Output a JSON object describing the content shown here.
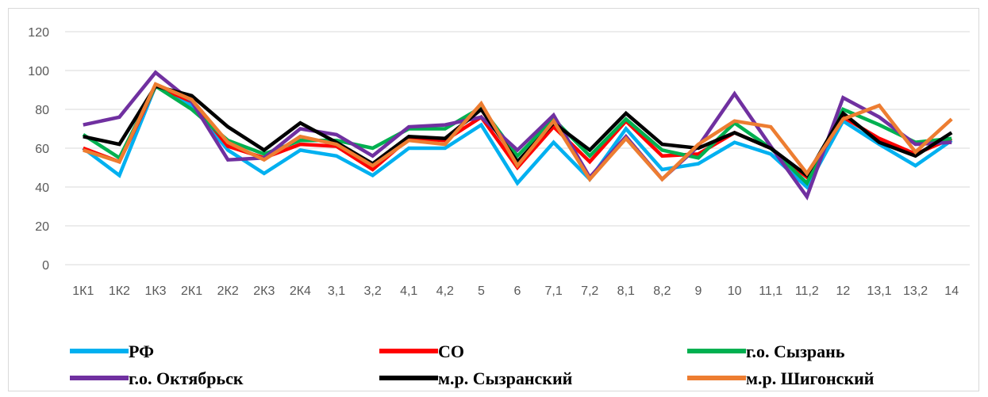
{
  "chart_data": {
    "type": "line",
    "title": "",
    "xlabel": "",
    "ylabel": "",
    "ylim": [
      0,
      120
    ],
    "yticks": [
      0,
      20,
      40,
      60,
      80,
      100,
      120
    ],
    "grid": "horizontal",
    "legend_position": "bottom",
    "categories": [
      "1К1",
      "1К2",
      "1К3",
      "2К1",
      "2К2",
      "2К3",
      "2К4",
      "3,1",
      "3,2",
      "4,1",
      "4,2",
      "5",
      "6",
      "7,1",
      "7,2",
      "8,1",
      "8,2",
      "9",
      "10",
      "11,1",
      "11,2",
      "12",
      "13,1",
      "13,2",
      "14"
    ],
    "series": [
      {
        "name": "РФ",
        "color": "#00b0f0",
        "values": [
          60,
          46,
          92,
          82,
          59,
          47,
          59,
          56,
          46,
          60,
          60,
          72,
          42,
          63,
          44,
          70,
          49,
          52,
          63,
          57,
          40,
          74,
          62,
          51,
          64
        ]
      },
      {
        "name": "СО",
        "color": "#ff0000",
        "values": [
          60,
          53,
          92,
          84,
          61,
          55,
          62,
          61,
          49,
          65,
          64,
          76,
          50,
          71,
          53,
          74,
          56,
          57,
          68,
          60,
          45,
          76,
          65,
          57,
          65
        ]
      },
      {
        "name": "г.о. Сызрань",
        "color": "#00b050",
        "values": [
          67,
          55,
          92,
          80,
          64,
          57,
          64,
          64,
          60,
          70,
          70,
          81,
          56,
          75,
          56,
          75,
          59,
          55,
          73,
          60,
          42,
          80,
          72,
          63,
          65
        ]
      },
      {
        "name": "г.о. Октябрьск",
        "color": "#7030a0",
        "values": [
          72,
          76,
          99,
          84,
          54,
          55,
          70,
          67,
          56,
          71,
          72,
          76,
          59,
          77,
          45,
          66,
          44,
          61,
          88,
          61,
          35,
          86,
          76,
          62,
          63
        ]
      },
      {
        "name": "м.р. Сызранский",
        "color": "#000000",
        "values": [
          66,
          62,
          92,
          87,
          71,
          59,
          73,
          63,
          52,
          66,
          65,
          80,
          53,
          73,
          59,
          78,
          62,
          60,
          68,
          60,
          46,
          78,
          63,
          56,
          68
        ]
      },
      {
        "name": "м.р. Шигонский",
        "color": "#ed7d31",
        "values": [
          59,
          53,
          93,
          85,
          63,
          54,
          66,
          62,
          51,
          64,
          62,
          83,
          51,
          74,
          44,
          65,
          44,
          62,
          74,
          71,
          47,
          75,
          82,
          58,
          75
        ]
      }
    ]
  }
}
